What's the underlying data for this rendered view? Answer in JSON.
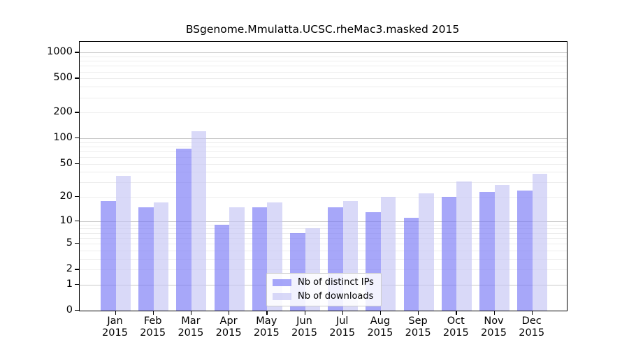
{
  "chart_data": {
    "type": "bar",
    "title": "BSgenome.Mmulatta.UCSC.rheMac3.masked 2015",
    "categories": [
      "Jan",
      "Feb",
      "Mar",
      "Apr",
      "May",
      "Jun",
      "Jul",
      "Aug",
      "Sep",
      "Oct",
      "Nov",
      "Dec"
    ],
    "year_label": "2015",
    "series": [
      {
        "name": "Nb of distinct IPs",
        "color": "rgba(120,120,246,0.65)",
        "values": [
          18,
          15,
          75,
          9,
          15,
          7,
          15,
          13,
          11,
          20,
          23,
          24
        ]
      },
      {
        "name": "Nb of downloads",
        "color": "rgba(196,196,245,0.65)",
        "values": [
          36,
          17,
          120,
          15,
          17,
          8,
          18,
          20,
          22,
          31,
          28,
          38
        ]
      }
    ],
    "yscale": "log1p",
    "y_tick_labels": [
      "1000",
      "500",
      "200",
      "100",
      "50",
      "20",
      "10",
      "5",
      "2",
      "1",
      "0"
    ],
    "y_tick_values": [
      1000,
      500,
      200,
      100,
      50,
      20,
      10,
      5,
      2,
      1,
      0
    ],
    "grid_major": [
      1,
      10,
      100,
      1000
    ],
    "grid_minor": [
      2,
      3,
      4,
      5,
      6,
      7,
      8,
      9,
      20,
      30,
      40,
      50,
      60,
      70,
      80,
      90,
      200,
      300,
      400,
      500,
      600,
      700,
      800,
      900
    ],
    "ylim": [
      0,
      1320
    ],
    "grid": "on",
    "legend_position": "lower-center",
    "axis_color": "#000000",
    "grid_major_color": "#c9c9c9",
    "grid_minor_color": "#ededed"
  }
}
